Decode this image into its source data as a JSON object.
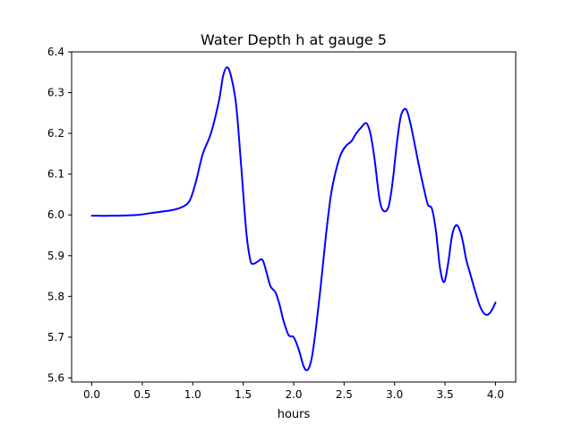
{
  "chart_data": {
    "type": "line",
    "title": "Water Depth h at gauge 5",
    "xlabel": "hours",
    "ylabel": "",
    "xlim": [
      -0.2,
      4.2
    ],
    "ylim": [
      5.59,
      6.4
    ],
    "xticks": [
      0.0,
      0.5,
      1.0,
      1.5,
      2.0,
      2.5,
      3.0,
      3.5,
      4.0
    ],
    "xtick_labels": [
      "0.0",
      "0.5",
      "1.0",
      "1.5",
      "2.0",
      "2.5",
      "3.0",
      "3.5",
      "4.0"
    ],
    "yticks": [
      5.6,
      5.7,
      5.8,
      5.9,
      6.0,
      6.1,
      6.2,
      6.3,
      6.4
    ],
    "ytick_labels": [
      "5.6",
      "5.7",
      "5.8",
      "5.9",
      "6.0",
      "6.1",
      "6.2",
      "6.3",
      "6.4"
    ],
    "grid": false,
    "series": [
      {
        "color": "#0000ff",
        "x": [
          0.0,
          0.2,
          0.45,
          0.6,
          0.8,
          0.9,
          0.97,
          1.03,
          1.1,
          1.18,
          1.26,
          1.3,
          1.34,
          1.38,
          1.43,
          1.48,
          1.53,
          1.57,
          1.6,
          1.64,
          1.69,
          1.73,
          1.77,
          1.82,
          1.86,
          1.9,
          1.95,
          2.0,
          2.05,
          2.1,
          2.14,
          2.18,
          2.22,
          2.27,
          2.32,
          2.37,
          2.42,
          2.47,
          2.52,
          2.57,
          2.62,
          2.67,
          2.72,
          2.76,
          2.8,
          2.85,
          2.89,
          2.94,
          2.98,
          3.02,
          3.06,
          3.1,
          3.13,
          3.17,
          3.21,
          3.25,
          3.29,
          3.33,
          3.37,
          3.41,
          3.45,
          3.49,
          3.53,
          3.57,
          3.61,
          3.65,
          3.68,
          3.71,
          3.75,
          3.79,
          3.84,
          3.88,
          3.92,
          3.96,
          4.0
        ],
        "y": [
          5.998,
          5.998,
          6.0,
          6.005,
          6.012,
          6.02,
          6.035,
          6.08,
          6.15,
          6.2,
          6.28,
          6.34,
          6.362,
          6.34,
          6.27,
          6.12,
          5.96,
          5.89,
          5.88,
          5.885,
          5.89,
          5.86,
          5.825,
          5.81,
          5.78,
          5.74,
          5.705,
          5.7,
          5.67,
          5.628,
          5.62,
          5.65,
          5.72,
          5.83,
          5.95,
          6.05,
          6.11,
          6.15,
          6.17,
          6.18,
          6.2,
          6.215,
          6.225,
          6.2,
          6.14,
          6.04,
          6.01,
          6.02,
          6.08,
          6.17,
          6.24,
          6.26,
          6.25,
          6.21,
          6.16,
          6.11,
          6.065,
          6.025,
          6.015,
          5.96,
          5.87,
          5.835,
          5.88,
          5.95,
          5.975,
          5.96,
          5.93,
          5.89,
          5.855,
          5.82,
          5.78,
          5.76,
          5.755,
          5.765,
          5.785
        ]
      }
    ]
  }
}
